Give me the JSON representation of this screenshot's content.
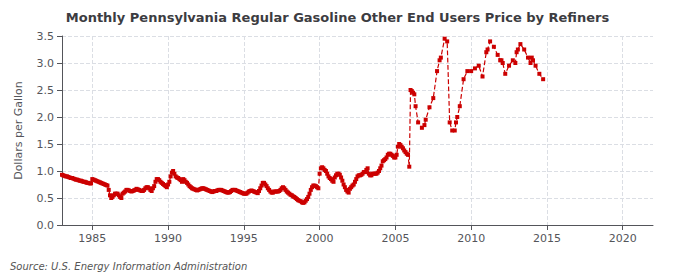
{
  "chart_data": {
    "type": "line",
    "title": "Monthly Pennsylvania Regular Gasoline Other End Users Price by Refiners",
    "ylabel": "Dollars per Gallon",
    "annotations": [
      "Source: U.S. Energy Information Administration"
    ],
    "color": "#cc0000",
    "marker": "square",
    "line_style": "dashed",
    "grid": true,
    "xlim": [
      1983,
      2022
    ],
    "ylim": [
      0.0,
      3.5
    ],
    "xticks": [
      1985,
      1990,
      1995,
      2000,
      2005,
      2010,
      2015,
      2020
    ],
    "yticks": [
      {
        "value": 0.0,
        "label": "0.0"
      },
      0.5,
      {
        "value": 1.0,
        "label": "1.0"
      },
      1.5,
      {
        "value": 2.0,
        "label": "2.0"
      },
      2.5,
      {
        "value": 3.0,
        "label": "3.0"
      },
      3.5
    ],
    "x": [
      1983.0,
      1983.083,
      1983.167,
      1983.25,
      1983.333,
      1983.417,
      1983.5,
      1983.583,
      1983.667,
      1983.75,
      1983.833,
      1983.917,
      1984.0,
      1984.083,
      1984.167,
      1984.25,
      1984.333,
      1984.417,
      1984.5,
      1984.583,
      1984.667,
      1984.75,
      1984.833,
      1984.917,
      1985.0,
      1985.083,
      1985.167,
      1985.25,
      1985.333,
      1985.417,
      1985.5,
      1985.583,
      1985.667,
      1985.75,
      1985.833,
      1985.917,
      1986.0,
      1986.083,
      1986.167,
      1986.25,
      1986.333,
      1986.417,
      1986.5,
      1986.583,
      1986.667,
      1986.75,
      1986.833,
      1986.917,
      1987.0,
      1987.083,
      1987.167,
      1987.25,
      1987.333,
      1987.417,
      1987.5,
      1987.583,
      1987.667,
      1987.75,
      1987.833,
      1987.917,
      1988.0,
      1988.083,
      1988.167,
      1988.25,
      1988.333,
      1988.417,
      1988.5,
      1988.583,
      1988.667,
      1988.75,
      1988.833,
      1988.917,
      1989.0,
      1989.083,
      1989.167,
      1989.25,
      1989.333,
      1989.417,
      1989.5,
      1989.583,
      1989.667,
      1989.75,
      1989.833,
      1989.917,
      1990.0,
      1990.083,
      1990.167,
      1990.25,
      1990.333,
      1990.417,
      1990.5,
      1990.583,
      1990.667,
      1990.75,
      1990.833,
      1990.917,
      1991.0,
      1991.083,
      1991.167,
      1991.25,
      1991.333,
      1991.417,
      1991.5,
      1991.583,
      1991.667,
      1991.75,
      1991.833,
      1991.917,
      1992.0,
      1992.083,
      1992.167,
      1992.25,
      1992.333,
      1992.417,
      1992.5,
      1992.583,
      1992.667,
      1992.75,
      1992.833,
      1992.917,
      1993.0,
      1993.083,
      1993.167,
      1993.25,
      1993.333,
      1993.417,
      1993.5,
      1993.583,
      1993.667,
      1993.75,
      1993.833,
      1993.917,
      1994.0,
      1994.083,
      1994.167,
      1994.25,
      1994.333,
      1994.417,
      1994.5,
      1994.583,
      1994.667,
      1994.75,
      1994.833,
      1994.917,
      1995.0,
      1995.083,
      1995.167,
      1995.25,
      1995.333,
      1995.417,
      1995.5,
      1995.583,
      1995.667,
      1995.75,
      1995.833,
      1995.917,
      1996.0,
      1996.083,
      1996.167,
      1996.25,
      1996.333,
      1996.417,
      1996.5,
      1996.583,
      1996.667,
      1996.75,
      1996.833,
      1996.917,
      1997.0,
      1997.083,
      1997.167,
      1997.25,
      1997.333,
      1997.417,
      1997.5,
      1997.583,
      1997.667,
      1997.75,
      1997.833,
      1997.917,
      1998.0,
      1998.083,
      1998.167,
      1998.25,
      1998.333,
      1998.417,
      1998.5,
      1998.583,
      1998.667,
      1998.75,
      1998.833,
      1998.917,
      1999.0,
      1999.083,
      1999.167,
      1999.25,
      1999.333,
      1999.417,
      1999.5,
      1999.583,
      1999.667,
      1999.75,
      1999.833,
      1999.917,
      2000.0,
      2000.083,
      2000.167,
      2000.25,
      2000.333,
      2000.417,
      2000.5,
      2000.583,
      2000.667,
      2000.75,
      2000.833,
      2000.917,
      2001.0,
      2001.083,
      2001.167,
      2001.25,
      2001.333,
      2001.417,
      2001.5,
      2001.583,
      2001.667,
      2001.75,
      2001.833,
      2001.917,
      2002.0,
      2002.083,
      2002.167,
      2002.25,
      2002.333,
      2002.417,
      2002.5,
      2002.583,
      2002.667,
      2002.75,
      2002.833,
      2002.917,
      2003.0,
      2003.083,
      2003.167,
      2003.25,
      2003.333,
      2003.417,
      2003.5,
      2003.583,
      2003.667,
      2003.75,
      2003.833,
      2003.917,
      2004.0,
      2004.083,
      2004.167,
      2004.25,
      2004.333,
      2004.417,
      2004.5,
      2004.583,
      2004.667,
      2004.75,
      2004.833,
      2004.917,
      2005.0,
      2005.083,
      2005.167,
      2005.25,
      2005.333,
      2005.417,
      2005.5,
      2005.583,
      2005.667,
      2005.75,
      2005.833,
      2005.917,
      2006.0,
      2006.083,
      2006.167,
      2006.25,
      2006.333,
      2006.5,
      2006.75,
      2006.917,
      2007.0,
      2007.25,
      2007.5,
      2007.75,
      2007.917,
      2008.0,
      2008.25,
      2008.417,
      2008.583,
      2008.75,
      2008.917,
      2009.0,
      2009.083,
      2009.25,
      2009.5,
      2009.75,
      2010.0,
      2010.25,
      2010.5,
      2010.75,
      2011.0,
      2011.083,
      2011.25,
      2011.5,
      2011.75,
      2011.917,
      2012.0,
      2012.083,
      2012.25,
      2012.5,
      2012.75,
      2012.917,
      2013.0,
      2013.083,
      2013.25,
      2013.5,
      2013.75,
      2013.917,
      2014.0,
      2014.083,
      2014.25,
      2014.5,
      2014.75
    ],
    "values": [
      0.93,
      0.92,
      0.91,
      0.9,
      0.9,
      0.89,
      0.88,
      0.87,
      0.87,
      0.86,
      0.85,
      0.84,
      0.84,
      0.83,
      0.82,
      0.82,
      0.81,
      0.8,
      0.8,
      0.79,
      0.78,
      0.78,
      0.77,
      0.77,
      0.85,
      0.84,
      0.83,
      0.82,
      0.81,
      0.8,
      0.79,
      0.78,
      0.77,
      0.76,
      0.75,
      0.74,
      0.73,
      0.65,
      0.55,
      0.5,
      0.52,
      0.55,
      0.58,
      0.58,
      0.58,
      0.55,
      0.52,
      0.5,
      0.58,
      0.6,
      0.62,
      0.65,
      0.65,
      0.64,
      0.63,
      0.62,
      0.63,
      0.64,
      0.65,
      0.67,
      0.66,
      0.65,
      0.64,
      0.63,
      0.63,
      0.65,
      0.68,
      0.7,
      0.7,
      0.68,
      0.65,
      0.63,
      0.68,
      0.72,
      0.8,
      0.85,
      0.85,
      0.83,
      0.8,
      0.78,
      0.76,
      0.74,
      0.72,
      0.7,
      0.75,
      0.8,
      0.9,
      0.97,
      1.0,
      0.95,
      0.9,
      0.88,
      0.87,
      0.85,
      0.83,
      0.8,
      0.85,
      0.83,
      0.8,
      0.78,
      0.75,
      0.72,
      0.7,
      0.68,
      0.67,
      0.66,
      0.65,
      0.64,
      0.65,
      0.66,
      0.67,
      0.68,
      0.68,
      0.67,
      0.66,
      0.65,
      0.64,
      0.63,
      0.62,
      0.61,
      0.62,
      0.63,
      0.63,
      0.64,
      0.65,
      0.65,
      0.65,
      0.64,
      0.63,
      0.62,
      0.61,
      0.6,
      0.6,
      0.61,
      0.63,
      0.65,
      0.65,
      0.65,
      0.64,
      0.63,
      0.62,
      0.61,
      0.6,
      0.59,
      0.58,
      0.58,
      0.58,
      0.6,
      0.62,
      0.63,
      0.64,
      0.63,
      0.62,
      0.61,
      0.6,
      0.59,
      0.63,
      0.68,
      0.73,
      0.78,
      0.78,
      0.75,
      0.72,
      0.68,
      0.65,
      0.62,
      0.6,
      0.6,
      0.62,
      0.62,
      0.62,
      0.62,
      0.63,
      0.65,
      0.68,
      0.7,
      0.68,
      0.65,
      0.62,
      0.6,
      0.58,
      0.56,
      0.55,
      0.53,
      0.52,
      0.5,
      0.48,
      0.46,
      0.45,
      0.44,
      0.42,
      0.41,
      0.42,
      0.45,
      0.48,
      0.52,
      0.58,
      0.65,
      0.7,
      0.73,
      0.73,
      0.72,
      0.7,
      0.68,
      0.95,
      1.05,
      1.07,
      1.05,
      1.02,
      1.0,
      0.95,
      0.9,
      0.87,
      0.85,
      0.82,
      0.8,
      0.88,
      0.92,
      0.95,
      0.95,
      0.93,
      0.88,
      0.82,
      0.75,
      0.7,
      0.65,
      0.62,
      0.6,
      0.67,
      0.7,
      0.73,
      0.75,
      0.8,
      0.85,
      0.9,
      0.92,
      0.92,
      0.93,
      0.95,
      0.98,
      0.98,
      1.02,
      1.05,
      0.95,
      0.92,
      0.92,
      0.95,
      0.95,
      0.95,
      0.95,
      0.97,
      1.0,
      1.05,
      1.1,
      1.18,
      1.2,
      1.22,
      1.25,
      1.3,
      1.32,
      1.32,
      1.3,
      1.28,
      1.25,
      1.25,
      1.3,
      1.45,
      1.5,
      1.48,
      1.45,
      1.42,
      1.38,
      1.35,
      1.32,
      1.3,
      1.08,
      2.5,
      2.48,
      2.45,
      2.42,
      2.2,
      1.9,
      1.8,
      1.85,
      1.95,
      2.18,
      2.35,
      2.85,
      3.05,
      3.1,
      3.45,
      3.4,
      1.9,
      1.75,
      1.75,
      1.9,
      2.0,
      2.2,
      2.7,
      2.85,
      2.85,
      2.9,
      2.95,
      2.75,
      3.2,
      3.25,
      3.4,
      3.3,
      3.15,
      3.05,
      3.05,
      3.0,
      2.8,
      2.95,
      3.05,
      3.0,
      3.2,
      3.25,
      3.35,
      3.25,
      3.1,
      3.0,
      3.1,
      3.05,
      2.95,
      2.8,
      2.7
    ]
  }
}
